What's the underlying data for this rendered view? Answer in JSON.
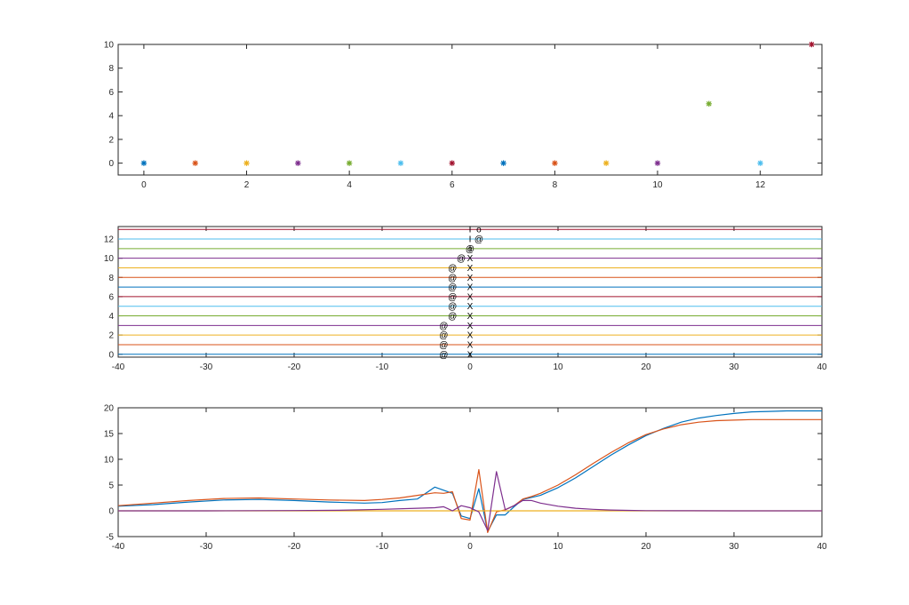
{
  "colors": {
    "palette": [
      "#0072BD",
      "#D95319",
      "#EDB120",
      "#7E2F8E",
      "#77AC30",
      "#4DBEEE",
      "#A2142F"
    ],
    "axes": "#262626",
    "background": "#ffffff"
  },
  "chart_data": [
    {
      "type": "scatter",
      "marker": "*",
      "grid": false,
      "xlim": [
        -0.5,
        13.2
      ],
      "ylim": [
        -1,
        10
      ],
      "xticks": [
        "0",
        "2",
        "4",
        "6",
        "8",
        "10",
        "12"
      ],
      "yticks": [
        "0",
        "2",
        "4",
        "6",
        "8",
        "10"
      ],
      "x": [
        0,
        1,
        2,
        3,
        4,
        5,
        6,
        7,
        8,
        9,
        10,
        11,
        12,
        13
      ],
      "y": [
        0,
        0,
        0,
        0,
        0,
        0,
        0,
        0,
        0,
        0,
        0,
        5,
        0,
        10
      ]
    },
    {
      "type": "line",
      "grid": false,
      "xlim": [
        -40,
        40
      ],
      "ylim": [
        -0.3,
        13.3
      ],
      "xticks": [
        "-40",
        "-30",
        "-20",
        "-10",
        "0",
        "10",
        "20",
        "30",
        "40"
      ],
      "yticks": [
        "0",
        "2",
        "4",
        "6",
        "8",
        "10",
        "12"
      ],
      "hlines": [
        0,
        1,
        2,
        3,
        4,
        5,
        6,
        7,
        8,
        9,
        10,
        11,
        12,
        13
      ],
      "annotations": [
        {
          "text": "@",
          "x": -3.0,
          "y": 0
        },
        {
          "text": "@",
          "x": -3.0,
          "y": 1
        },
        {
          "text": "@",
          "x": -3.0,
          "y": 2
        },
        {
          "text": "@",
          "x": -3.0,
          "y": 3
        },
        {
          "text": "@",
          "x": -2.0,
          "y": 4
        },
        {
          "text": "@",
          "x": -2.0,
          "y": 5
        },
        {
          "text": "@",
          "x": -2.0,
          "y": 6
        },
        {
          "text": "@",
          "x": -2.0,
          "y": 7
        },
        {
          "text": "@",
          "x": -2.0,
          "y": 8
        },
        {
          "text": "@",
          "x": -2.0,
          "y": 9
        },
        {
          "text": "@",
          "x": -1.0,
          "y": 10
        },
        {
          "text": "@",
          "x": 0.0,
          "y": 11
        },
        {
          "text": "@",
          "x": 1.0,
          "y": 12
        },
        {
          "text": "X",
          "x": 0,
          "y": 0
        },
        {
          "text": "X",
          "x": 0,
          "y": 1
        },
        {
          "text": "X",
          "x": 0,
          "y": 2
        },
        {
          "text": "X",
          "x": 0,
          "y": 3
        },
        {
          "text": "X",
          "x": 0,
          "y": 4
        },
        {
          "text": "X",
          "x": 0,
          "y": 5
        },
        {
          "text": "X",
          "x": 0,
          "y": 6
        },
        {
          "text": "X",
          "x": 0,
          "y": 7
        },
        {
          "text": "X",
          "x": 0,
          "y": 8
        },
        {
          "text": "X",
          "x": 0,
          "y": 9
        },
        {
          "text": "X",
          "x": 0,
          "y": 10
        },
        {
          "text": "I",
          "x": 0,
          "y": 11
        },
        {
          "text": "I",
          "x": 0,
          "y": 12
        },
        {
          "text": "I",
          "x": 0,
          "y": 13
        },
        {
          "text": "o",
          "x": 1.0,
          "y": 13
        }
      ]
    },
    {
      "type": "line",
      "grid": false,
      "xlim": [
        -40,
        40
      ],
      "ylim": [
        -5,
        20
      ],
      "xticks": [
        "-40",
        "-30",
        "-20",
        "-10",
        "0",
        "10",
        "20",
        "30",
        "40"
      ],
      "yticks": [
        "-5",
        "0",
        "5",
        "10",
        "15",
        "20"
      ],
      "series": [
        {
          "color": "#0072BD",
          "x": [
            -40,
            -36,
            -32,
            -28,
            -24,
            -20,
            -16,
            -12,
            -10,
            -8,
            -6,
            -4,
            -3,
            -2,
            -1,
            0,
            1,
            2,
            3,
            4,
            5,
            6,
            7,
            8,
            10,
            12,
            14,
            16,
            18,
            20,
            22,
            24,
            26,
            28,
            30,
            32,
            34,
            36,
            38,
            40
          ],
          "y": [
            0.9,
            1.2,
            1.7,
            2.1,
            2.2,
            2.0,
            1.7,
            1.5,
            1.6,
            2.0,
            2.3,
            4.6,
            4.0,
            3.4,
            -1.0,
            -1.5,
            4.3,
            -4.0,
            -0.8,
            -0.8,
            0.8,
            2.2,
            2.6,
            3.0,
            4.5,
            6.4,
            8.6,
            10.8,
            12.8,
            14.6,
            16.0,
            17.2,
            18.0,
            18.5,
            18.9,
            19.2,
            19.3,
            19.4,
            19.4,
            19.4
          ]
        },
        {
          "color": "#D95319",
          "x": [
            -40,
            -36,
            -32,
            -28,
            -24,
            -20,
            -16,
            -12,
            -10,
            -8,
            -6,
            -4,
            -3,
            -2,
            -1,
            0,
            1,
            2,
            3,
            4,
            5,
            6,
            7,
            8,
            10,
            12,
            14,
            16,
            18,
            20,
            22,
            24,
            26,
            28,
            30,
            32,
            34,
            36,
            38,
            40
          ],
          "y": [
            1.0,
            1.5,
            2.0,
            2.4,
            2.5,
            2.3,
            2.1,
            2.0,
            2.2,
            2.5,
            3.0,
            3.5,
            3.4,
            3.7,
            -1.5,
            -1.8,
            8.0,
            -4.2,
            -0.2,
            0.2,
            1.0,
            2.3,
            2.8,
            3.4,
            5.0,
            7.0,
            9.2,
            11.3,
            13.2,
            14.8,
            15.9,
            16.7,
            17.2,
            17.5,
            17.6,
            17.7,
            17.7,
            17.7,
            17.7,
            17.7
          ]
        },
        {
          "color": "#EDB120",
          "x": [
            -40,
            40
          ],
          "y": [
            0,
            0
          ]
        },
        {
          "color": "#7E2F8E",
          "x": [
            -40,
            -30,
            -20,
            -15,
            -10,
            -6,
            -4,
            -3,
            -2,
            -1,
            0,
            1,
            2,
            3,
            4,
            5,
            6,
            7,
            8,
            10,
            12,
            14,
            16,
            18,
            20,
            25,
            30,
            40
          ],
          "y": [
            0,
            0,
            0.05,
            0.1,
            0.3,
            0.5,
            0.6,
            0.8,
            0.0,
            1.0,
            0.6,
            -0.2,
            -3.8,
            7.6,
            0.2,
            1.0,
            2.0,
            2.0,
            1.5,
            0.9,
            0.5,
            0.3,
            0.15,
            0.08,
            0.04,
            0.01,
            0,
            0
          ]
        }
      ]
    }
  ]
}
